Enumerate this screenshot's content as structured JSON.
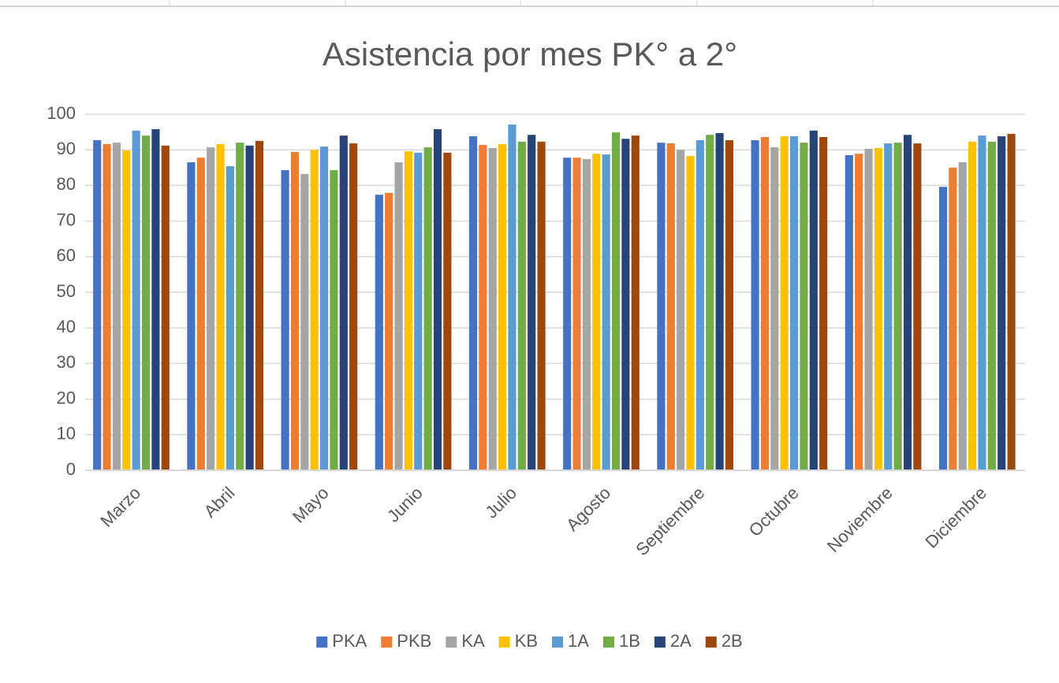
{
  "chart_data": {
    "type": "bar",
    "title": "Asistencia por mes PK° a 2°",
    "categories": [
      "Marzo",
      "Abril",
      "Mayo",
      "Junio",
      "Julio",
      "Agosto",
      "Septiembre",
      "Octubre",
      "Noviembre",
      "Diciembre"
    ],
    "series": [
      {
        "name": "PKA",
        "color": "#4472c4",
        "values": [
          92.7,
          86.5,
          84.3,
          77.4,
          93.8,
          87.8,
          92.0,
          92.7,
          88.5,
          79.6
        ]
      },
      {
        "name": "PKB",
        "color": "#ed7d31",
        "values": [
          91.6,
          87.8,
          89.4,
          77.9,
          91.4,
          87.8,
          91.8,
          93.6,
          88.9,
          85.0
        ]
      },
      {
        "name": "KA",
        "color": "#a5a5a5",
        "values": [
          92.0,
          90.7,
          83.2,
          86.5,
          90.5,
          87.4,
          90.0,
          90.7,
          90.3,
          86.5
        ]
      },
      {
        "name": "KB",
        "color": "#ffc000",
        "values": [
          89.8,
          91.6,
          90.0,
          89.6,
          91.6,
          88.9,
          88.3,
          93.8,
          90.5,
          92.3
        ]
      },
      {
        "name": "1A",
        "color": "#5b9bd5",
        "values": [
          95.4,
          85.4,
          90.9,
          89.2,
          97.1,
          88.7,
          92.7,
          93.8,
          91.8,
          94.0
        ]
      },
      {
        "name": "1B",
        "color": "#70ad47",
        "values": [
          94.0,
          92.0,
          84.3,
          90.7,
          92.3,
          94.9,
          94.2,
          92.0,
          92.0,
          92.3
        ]
      },
      {
        "name": "2A",
        "color": "#264478",
        "values": [
          95.8,
          91.2,
          94.0,
          95.8,
          94.2,
          93.1,
          94.7,
          95.4,
          94.2,
          93.8
        ]
      },
      {
        "name": "2B",
        "color": "#9e480e",
        "values": [
          91.2,
          92.5,
          91.8,
          89.2,
          92.3,
          94.0,
          92.7,
          93.6,
          91.8,
          94.5
        ]
      }
    ],
    "ylim": [
      0,
      100
    ],
    "yticks": [
      0,
      10,
      20,
      30,
      40,
      50,
      60,
      70,
      80,
      90,
      100
    ],
    "grid": true,
    "legend": "bottom"
  }
}
